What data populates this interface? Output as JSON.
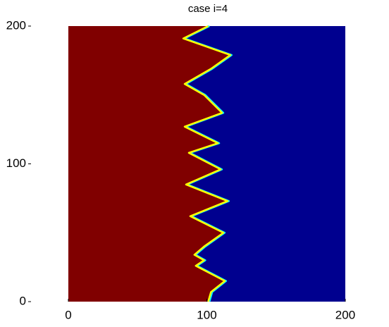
{
  "chart_data": {
    "type": "field",
    "title": "case i=4",
    "xlim": [
      -29,
      228
    ],
    "ylim": [
      0,
      200
    ],
    "xticks": [
      0,
      100,
      200
    ],
    "yticks": [
      0,
      100,
      200
    ],
    "extent_x": [
      0,
      200
    ],
    "extent_y": [
      0,
      200
    ],
    "left_color": "#800000",
    "right_color": "#00008f",
    "edge_colors": [
      "#ffff00",
      "#00ffff"
    ],
    "boundary": {
      "x": [
        101,
        103,
        113,
        92,
        98,
        91,
        98,
        112,
        88,
        115,
        85,
        110,
        87,
        108,
        84,
        111,
        103,
        98,
        84,
        103,
        117,
        83,
        101
      ],
      "y": [
        0,
        7,
        15,
        26,
        30,
        34,
        40,
        50,
        62,
        73,
        85,
        96,
        108,
        115,
        127,
        137,
        145,
        150,
        158,
        169,
        179,
        191,
        200
      ]
    }
  }
}
